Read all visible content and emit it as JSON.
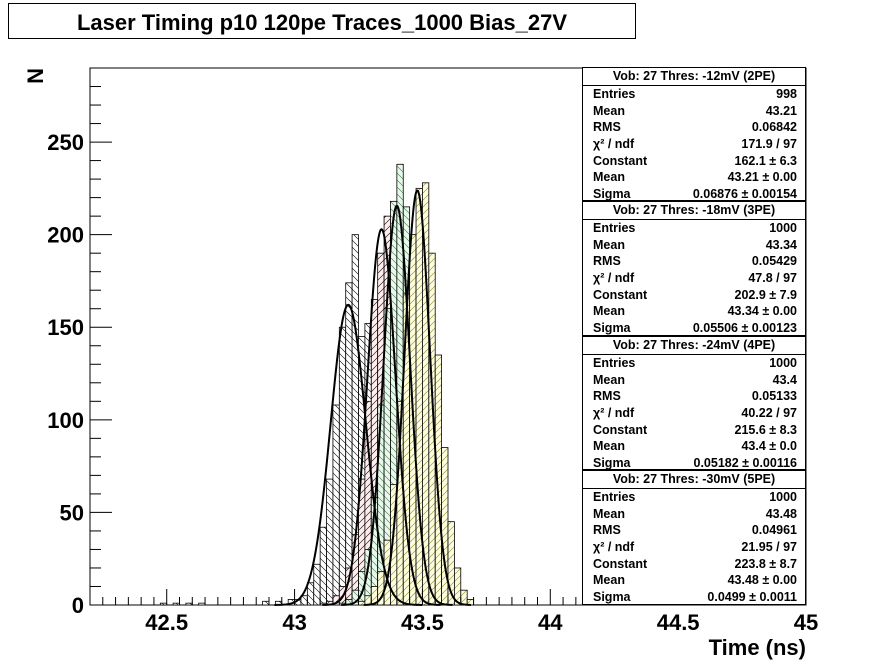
{
  "title": "Laser Timing p10 120pe  Traces_1000  Bias_27V",
  "chart_data": {
    "type": "histogram",
    "xlabel": "Time (ns)",
    "ylabel": "N",
    "xlim": [
      42.2,
      45.0
    ],
    "ylim": [
      0,
      290
    ],
    "x_ticks": [
      "42.5",
      "43",
      "43.5",
      "44",
      "44.5",
      "45"
    ],
    "y_ticks": [
      "0",
      "50",
      "100",
      "150",
      "200",
      "250"
    ],
    "bin_width": 0.025,
    "series": [
      {
        "hatch": "backslash",
        "color": "#000000",
        "fill": "#ffffff",
        "bins": [
          [
            42.475,
            1
          ],
          [
            42.525,
            1
          ],
          [
            42.575,
            1
          ],
          [
            42.625,
            1
          ],
          [
            42.875,
            2
          ],
          [
            42.925,
            2
          ],
          [
            42.975,
            3
          ],
          [
            43.0,
            3
          ],
          [
            43.025,
            5
          ],
          [
            43.05,
            12
          ],
          [
            43.075,
            22
          ],
          [
            43.1,
            42
          ],
          [
            43.125,
            68
          ],
          [
            43.15,
            108
          ],
          [
            43.175,
            150
          ],
          [
            43.2,
            174
          ],
          [
            43.225,
            200
          ],
          [
            43.25,
            145
          ],
          [
            43.275,
            152
          ],
          [
            43.3,
            108
          ],
          [
            43.325,
            60
          ],
          [
            43.35,
            38
          ],
          [
            43.375,
            25
          ],
          [
            43.4,
            12
          ],
          [
            43.425,
            6
          ],
          [
            43.45,
            4
          ],
          [
            43.475,
            2
          ]
        ],
        "fit": {
          "constant": 162.1,
          "mean": 43.21,
          "sigma": 0.06876
        }
      },
      {
        "hatch": "slash",
        "color": "#000000",
        "fill": "#ffecec",
        "bins": [
          [
            43.1,
            1
          ],
          [
            43.125,
            2
          ],
          [
            43.15,
            5
          ],
          [
            43.175,
            10
          ],
          [
            43.2,
            20
          ],
          [
            43.225,
            38
          ],
          [
            43.25,
            68
          ],
          [
            43.275,
            110
          ],
          [
            43.3,
            165
          ],
          [
            43.325,
            190
          ],
          [
            43.35,
            210
          ],
          [
            43.375,
            205
          ],
          [
            43.4,
            165
          ],
          [
            43.425,
            110
          ],
          [
            43.45,
            60
          ],
          [
            43.475,
            28
          ],
          [
            43.5,
            12
          ],
          [
            43.525,
            5
          ],
          [
            43.55,
            2
          ]
        ],
        "fit": {
          "constant": 202.9,
          "mean": 43.34,
          "sigma": 0.05506
        }
      },
      {
        "hatch": "backslash",
        "color": "#000000",
        "fill": "#e8f8ec",
        "bins": [
          [
            43.175,
            1
          ],
          [
            43.2,
            3
          ],
          [
            43.225,
            8
          ],
          [
            43.25,
            18
          ],
          [
            43.275,
            30
          ],
          [
            43.3,
            58
          ],
          [
            43.325,
            108
          ],
          [
            43.35,
            160
          ],
          [
            43.375,
            218
          ],
          [
            43.4,
            238
          ],
          [
            43.425,
            215
          ],
          [
            43.45,
            165
          ],
          [
            43.475,
            108
          ],
          [
            43.5,
            58
          ],
          [
            43.525,
            25
          ],
          [
            43.55,
            8
          ],
          [
            43.575,
            3
          ],
          [
            43.6,
            1
          ]
        ],
        "fit": {
          "constant": 215.6,
          "mean": 43.4,
          "sigma": 0.05182
        }
      },
      {
        "hatch": "slash",
        "color": "#000000",
        "fill": "#fcfce0",
        "bins": [
          [
            43.25,
            2
          ],
          [
            43.275,
            5
          ],
          [
            43.3,
            10
          ],
          [
            43.325,
            18
          ],
          [
            43.35,
            35
          ],
          [
            43.375,
            65
          ],
          [
            43.4,
            110
          ],
          [
            43.425,
            168
          ],
          [
            43.45,
            200
          ],
          [
            43.475,
            225
          ],
          [
            43.5,
            228
          ],
          [
            43.525,
            190
          ],
          [
            43.55,
            135
          ],
          [
            43.575,
            85
          ],
          [
            43.6,
            45
          ],
          [
            43.625,
            20
          ],
          [
            43.65,
            8
          ],
          [
            43.675,
            3
          ]
        ],
        "fit": {
          "constant": 223.8,
          "mean": 43.48,
          "sigma": 0.0499
        }
      }
    ]
  },
  "stats_boxes": [
    {
      "header": "Vob: 27  Thres: -12mV (2PE)",
      "rows": [
        {
          "label": "Entries",
          "value": "998"
        },
        {
          "label": "Mean",
          "value": "43.21"
        },
        {
          "label": "RMS",
          "value": "0.06842"
        },
        {
          "label": "χ² / ndf",
          "value": "171.9 / 97"
        },
        {
          "label": "Constant",
          "value": "162.1 ± 6.3"
        },
        {
          "label": "Mean",
          "value": "43.21 ± 0.00"
        },
        {
          "label": "Sigma",
          "value": "0.06876 ± 0.00154"
        }
      ]
    },
    {
      "header": "Vob: 27  Thres: -18mV (3PE)",
      "rows": [
        {
          "label": "Entries",
          "value": "1000"
        },
        {
          "label": "Mean",
          "value": "43.34"
        },
        {
          "label": "RMS",
          "value": "0.05429"
        },
        {
          "label": "χ² / ndf",
          "value": "47.8 / 97"
        },
        {
          "label": "Constant",
          "value": "202.9 ± 7.9"
        },
        {
          "label": "Mean",
          "value": "43.34 ± 0.00"
        },
        {
          "label": "Sigma",
          "value": "0.05506 ± 0.00123"
        }
      ]
    },
    {
      "header": "Vob: 27  Thres: -24mV (4PE)",
      "rows": [
        {
          "label": "Entries",
          "value": "1000"
        },
        {
          "label": "Mean",
          "value": "43.4"
        },
        {
          "label": "RMS",
          "value": "0.05133"
        },
        {
          "label": "χ² / ndf",
          "value": "40.22 / 97"
        },
        {
          "label": "Constant",
          "value": "215.6 ± 8.3"
        },
        {
          "label": "Mean",
          "value": "43.4 ± 0.0"
        },
        {
          "label": "Sigma",
          "value": "0.05182 ± 0.00116"
        }
      ]
    },
    {
      "header": "Vob: 27  Thres: -30mV (5PE)",
      "rows": [
        {
          "label": "Entries",
          "value": "1000"
        },
        {
          "label": "Mean",
          "value": "43.48"
        },
        {
          "label": "RMS",
          "value": "0.04961"
        },
        {
          "label": "χ² / ndf",
          "value": "21.95 / 97"
        },
        {
          "label": "Constant",
          "value": "223.8 ± 8.7"
        },
        {
          "label": "Mean",
          "value": "43.48 ± 0.00"
        },
        {
          "label": "Sigma",
          "value": "0.0499 ± 0.0011"
        }
      ]
    }
  ]
}
